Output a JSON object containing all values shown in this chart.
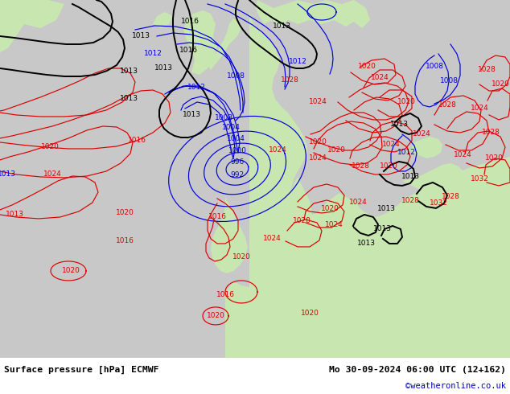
{
  "title_left": "Surface pressure [hPa] ECMWF",
  "title_right": "Mo 30-09-2024 06:00 UTC (12+162)",
  "copyright": "©weatheronline.co.uk",
  "bg_ocean": "#c8c8c8",
  "bg_land": "#c8e6b0",
  "bg_bottom": "#d8d8d8",
  "blue": "#0000dd",
  "red": "#dd0000",
  "black": "#000000",
  "fig_width": 6.34,
  "fig_height": 4.9,
  "dpi": 100
}
